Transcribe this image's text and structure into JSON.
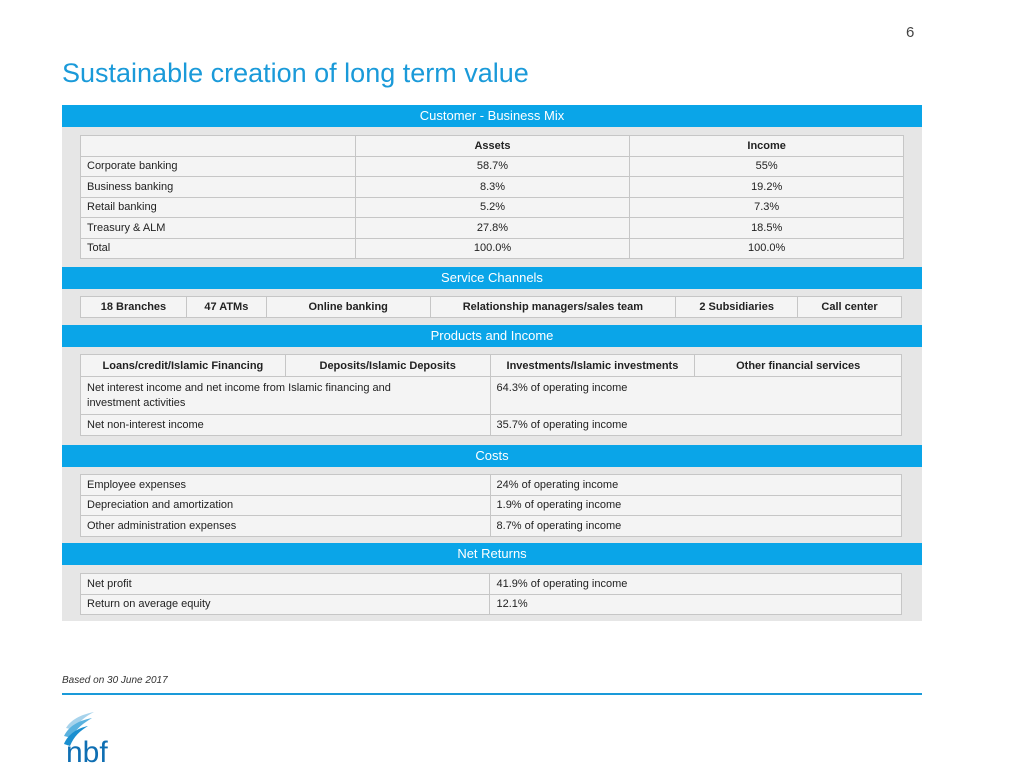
{
  "page_number": "6",
  "title": "Sustainable creation of long term value",
  "sections": {
    "mix": "Customer - Business Mix",
    "channels": "Service Channels",
    "products": "Products and Income",
    "costs": "Costs",
    "returns": "Net Returns"
  },
  "business_mix": {
    "headers": [
      "",
      "Assets",
      "Income"
    ],
    "rows": [
      [
        "Corporate banking",
        "58.7%",
        "55%"
      ],
      [
        "Business banking",
        "8.3%",
        "19.2%"
      ],
      [
        "Retail banking",
        "5.2%",
        "7.3%"
      ],
      [
        "Treasury & ALM",
        "27.8%",
        "18.5%"
      ],
      [
        "Total",
        "100.0%",
        "100.0%"
      ]
    ]
  },
  "service_channels": [
    "18 Branches",
    "47 ATMs",
    "Online  banking",
    "Relationship managers/sales team",
    "2 Subsidiaries",
    "Call center"
  ],
  "products": {
    "headers": [
      "Loans/credit/Islamic Financing",
      "Deposits/Islamic Deposits",
      "Investments/Islamic investments",
      "Other financial services"
    ],
    "rows": [
      [
        "Net interest income and net income from Islamic financing and investment activities",
        "64.3% of operating income"
      ],
      [
        "Net non-interest income",
        "35.7% of operating income"
      ]
    ]
  },
  "costs": [
    [
      "Employee expenses",
      "24% of operating income"
    ],
    [
      "Depreciation and amortization",
      "1.9% of operating income"
    ],
    [
      "Other administration expenses",
      "8.7% of operating income"
    ]
  ],
  "net_returns": [
    [
      "Net profit",
      "41.9% of operating income"
    ],
    [
      "Return on average equity",
      "12.1%"
    ]
  ],
  "footnote": "Based on 30 June 2017",
  "logo_text": "nbf",
  "colors": {
    "accent": "#0aa5e8",
    "title": "#1a9ad9",
    "panel": "#e6e6e6"
  }
}
